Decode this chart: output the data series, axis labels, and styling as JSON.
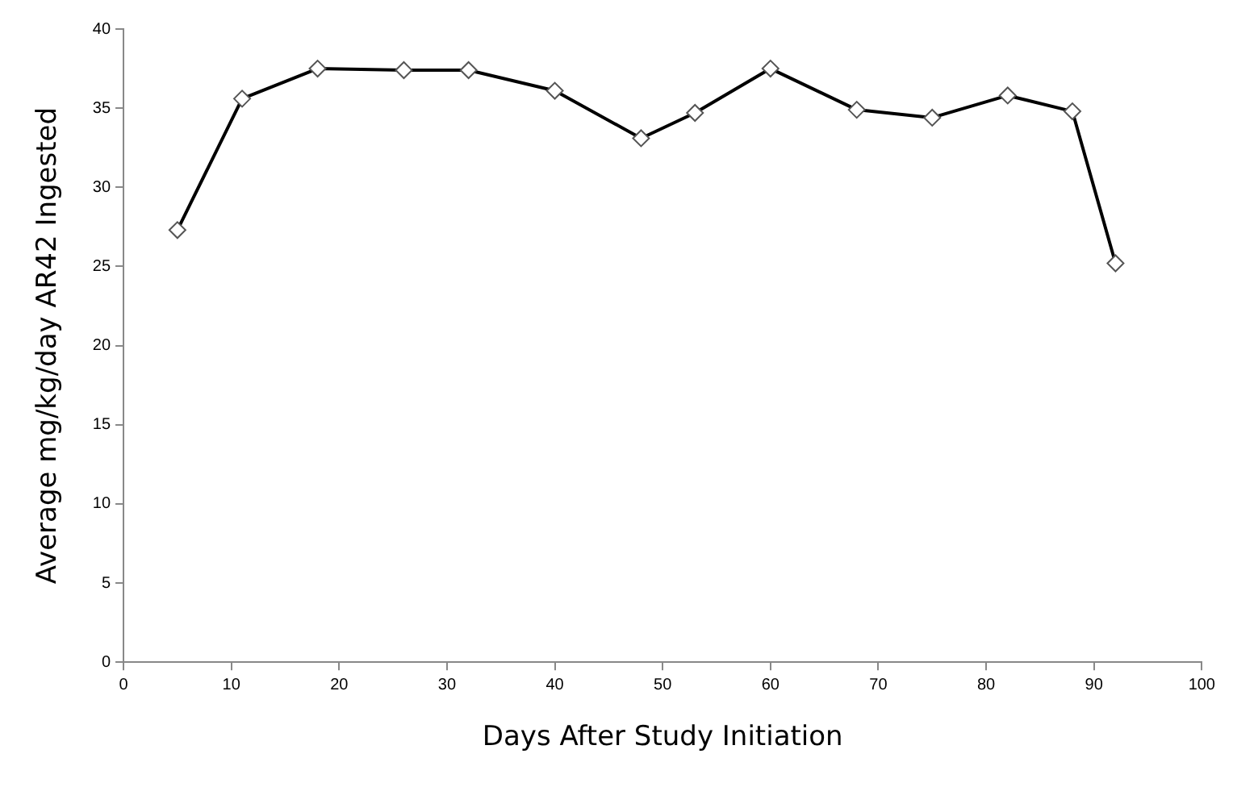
{
  "chart_data": {
    "type": "line",
    "xlabel": "Days After Study Initiation",
    "ylabel": "Average mg/kg/day AR42 Ingested",
    "x": [
      5,
      11,
      18,
      26,
      32,
      40,
      48,
      53,
      60,
      68,
      75,
      82,
      88,
      92
    ],
    "series": [
      {
        "color": "#000000",
        "values": [
          27.3,
          35.6,
          37.5,
          37.4,
          37.4,
          36.1,
          33.1,
          34.7,
          37.5,
          34.9,
          34.4,
          35.8,
          34.8,
          25.2
        ]
      }
    ],
    "xlim": [
      0,
      100
    ],
    "xticks": [
      0,
      10,
      20,
      30,
      40,
      50,
      60,
      70,
      80,
      90,
      100
    ],
    "ylim": [
      0,
      40
    ],
    "yticks": [
      0,
      5,
      10,
      15,
      20,
      25,
      30,
      35,
      40
    ],
    "grid": false,
    "legend": false,
    "marker": "diamond",
    "line_style": "solid"
  }
}
